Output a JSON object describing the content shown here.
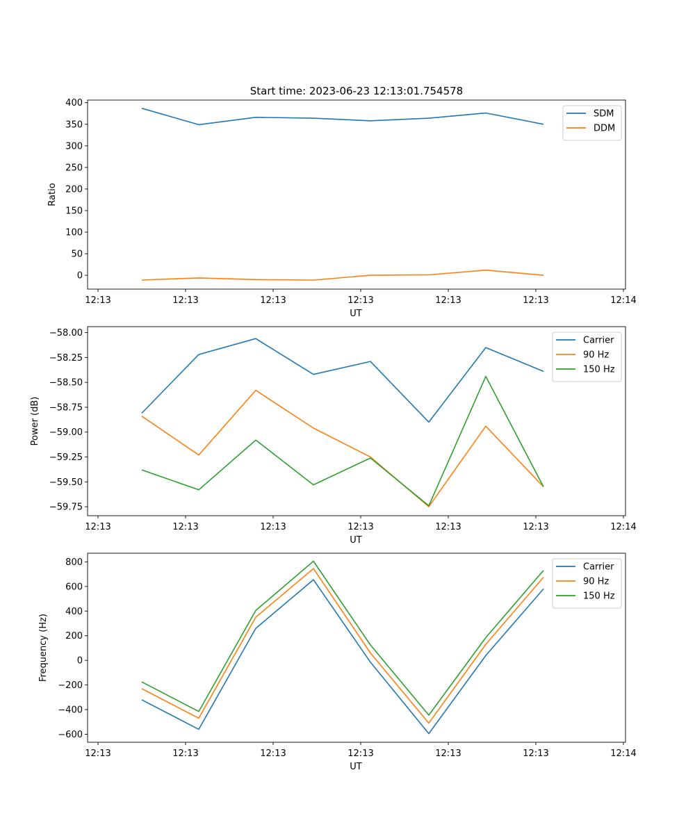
{
  "title": "Start time: 2023-06-23 12:13:01.754578",
  "chart_data": [
    {
      "type": "line",
      "xlabel": "UT",
      "ylabel": "Ratio",
      "x_tick_labels": [
        "12:13",
        "12:13",
        "12:13",
        "12:13",
        "12:13",
        "12:13",
        "12:14"
      ],
      "y_ticks": [
        0,
        50,
        100,
        150,
        200,
        250,
        300,
        350,
        400
      ],
      "ylim": [
        -32,
        406
      ],
      "legend": "top-right",
      "series": [
        {
          "name": "SDM",
          "color": "#1f77b4",
          "values": [
            387,
            349,
            366,
            364,
            358,
            364,
            376,
            350
          ]
        },
        {
          "name": "DDM",
          "color": "#ff7f0e",
          "values": [
            -11,
            -6,
            -10,
            -11,
            0,
            1,
            12,
            0
          ]
        }
      ]
    },
    {
      "type": "line",
      "xlabel": "UT",
      "ylabel": "Power (dB)",
      "x_tick_labels": [
        "12:13",
        "12:13",
        "12:13",
        "12:13",
        "12:13",
        "12:13",
        "12:14"
      ],
      "y_ticks": [
        -59.75,
        -59.5,
        -59.25,
        -59.0,
        -58.75,
        -58.5,
        -58.25,
        -58.0
      ],
      "ylim": [
        -59.84,
        -57.94
      ],
      "legend": "top-right",
      "series": [
        {
          "name": "Carrier",
          "color": "#1f77b4",
          "values": [
            -58.81,
            -58.22,
            -58.06,
            -58.42,
            -58.29,
            -58.9,
            -58.15,
            -58.39
          ]
        },
        {
          "name": "90 Hz",
          "color": "#ff7f0e",
          "values": [
            -58.84,
            -59.23,
            -58.58,
            -58.96,
            -59.25,
            -59.75,
            -58.94,
            -59.55
          ]
        },
        {
          "name": "150 Hz",
          "color": "#2ca02c",
          "values": [
            -59.38,
            -59.58,
            -59.08,
            -59.53,
            -59.26,
            -59.74,
            -58.44,
            -59.55
          ]
        }
      ]
    },
    {
      "type": "line",
      "xlabel": "UT",
      "ylabel": "Frequency (Hz)",
      "x_tick_labels": [
        "12:13",
        "12:13",
        "12:13",
        "12:13",
        "12:13",
        "12:13",
        "12:14"
      ],
      "y_ticks": [
        -600,
        -400,
        -200,
        0,
        200,
        400,
        600,
        800
      ],
      "ylim": [
        -665,
        870
      ],
      "legend": "top-right",
      "series": [
        {
          "name": "Carrier",
          "color": "#1f77b4",
          "values": [
            -320,
            -560,
            260,
            655,
            -15,
            -595,
            40,
            580
          ]
        },
        {
          "name": "90 Hz",
          "color": "#ff7f0e",
          "values": [
            -230,
            -470,
            350,
            745,
            60,
            -510,
            130,
            675
          ]
        },
        {
          "name": "150 Hz",
          "color": "#2ca02c",
          "values": [
            -175,
            -415,
            405,
            805,
            125,
            -445,
            185,
            730
          ]
        }
      ]
    }
  ]
}
